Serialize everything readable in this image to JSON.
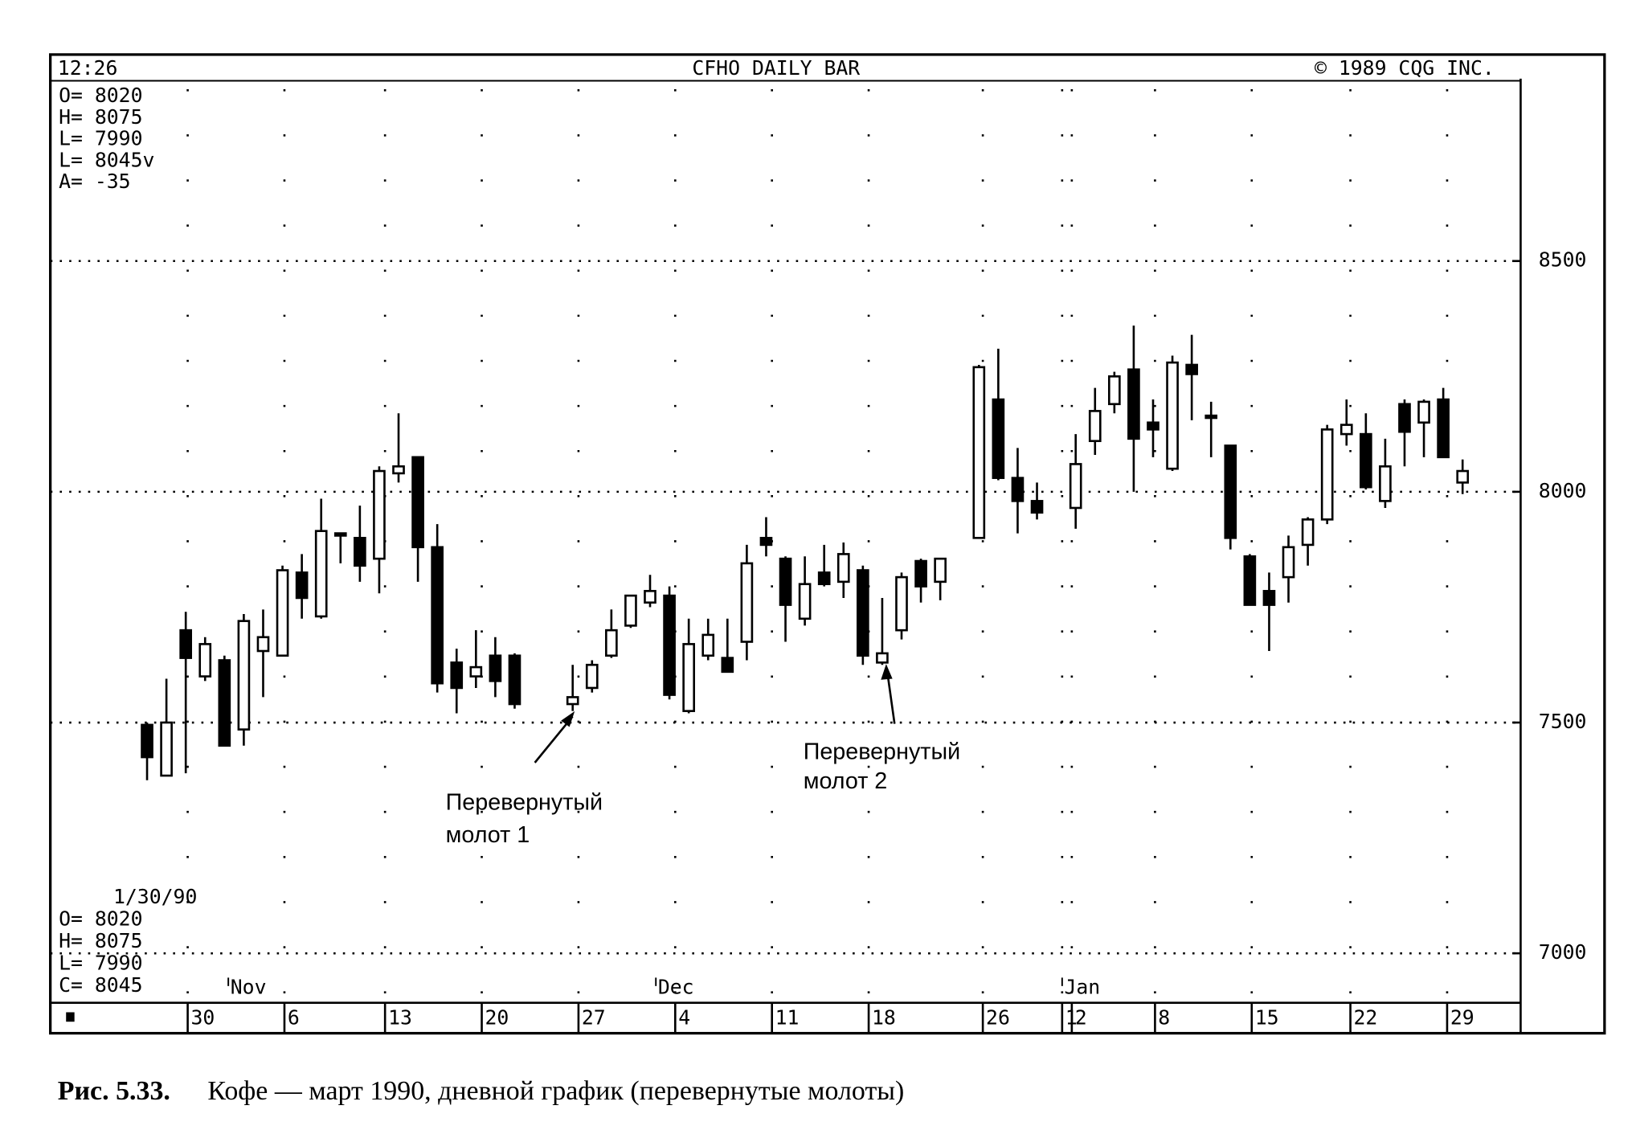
{
  "chart_data": {
    "type": "candlestick",
    "title": "CFHO DAILY BAR",
    "header_left": "12:26",
    "header_right": "© 1989 CQG INC.",
    "info_top": [
      "O= 8020",
      "H= 8075",
      "L= 7990",
      "L= 8045v",
      "A=  -35"
    ],
    "info_bottom": [
      "1/30/90",
      "O= 8020",
      "H= 8075",
      "L= 7990",
      "C= 8045"
    ],
    "x": [
      0,
      1,
      2,
      3,
      4,
      5,
      6,
      7,
      8,
      9,
      10,
      11,
      12,
      13,
      14,
      15,
      16,
      17,
      18,
      19,
      22,
      23,
      24,
      25,
      26,
      27,
      28,
      29,
      30,
      31,
      32,
      33,
      34,
      35,
      36,
      37,
      38,
      39,
      40,
      41,
      43,
      44,
      45,
      46,
      48,
      49,
      50,
      51,
      52,
      53,
      54,
      55,
      56,
      57,
      58,
      59,
      60,
      61,
      62,
      63,
      64,
      65,
      66,
      67,
      68
    ],
    "open": [
      7495,
      7385,
      7700,
      7600,
      7635,
      7485,
      7655,
      7645,
      7825,
      7730,
      7910,
      7900,
      7855,
      8040,
      8075,
      7880,
      7630,
      7600,
      7645,
      7645,
      7540,
      7575,
      7645,
      7710,
      7760,
      7775,
      7525,
      7645,
      7640,
      7675,
      7900,
      7855,
      7725,
      7825,
      7805,
      7830,
      7630,
      7700,
      7850,
      7805,
      7900,
      8200,
      8030,
      7980,
      7965,
      8110,
      8190,
      8265,
      8150,
      8050,
      8275,
      8165,
      8100,
      7860,
      7785,
      7815,
      7885,
      7940,
      8125,
      8125,
      7980,
      8190,
      8150,
      8200,
      8020
    ],
    "high": [
      7500,
      7595,
      7740,
      7685,
      7645,
      7735,
      7745,
      7840,
      7865,
      7985,
      7910,
      7970,
      8055,
      8170,
      8075,
      7930,
      7660,
      7700,
      7685,
      7650,
      7625,
      7635,
      7745,
      7775,
      7820,
      7795,
      7725,
      7725,
      7725,
      7885,
      7945,
      7860,
      7860,
      7885,
      7890,
      7840,
      7770,
      7825,
      7855,
      7855,
      8275,
      8310,
      8095,
      8020,
      8125,
      8225,
      8260,
      8360,
      8200,
      8295,
      8340,
      8195,
      8100,
      7865,
      7825,
      7905,
      7945,
      8145,
      8200,
      8170,
      8115,
      8200,
      8200,
      8225,
      8070
    ],
    "low": [
      7375,
      7385,
      7390,
      7590,
      7450,
      7450,
      7555,
      7645,
      7725,
      7725,
      7845,
      7805,
      7780,
      8020,
      7805,
      7565,
      7520,
      7575,
      7555,
      7530,
      7525,
      7565,
      7640,
      7705,
      7750,
      7550,
      7520,
      7635,
      7610,
      7635,
      7860,
      7675,
      7710,
      7795,
      7770,
      7625,
      7625,
      7680,
      7760,
      7765,
      7900,
      8025,
      7910,
      7940,
      7920,
      8080,
      8170,
      8000,
      8075,
      8045,
      8155,
      8075,
      7875,
      7755,
      7655,
      7760,
      7840,
      7930,
      8100,
      8005,
      7965,
      8055,
      8075,
      8075,
      7995
    ],
    "close": [
      7425,
      7500,
      7640,
      7670,
      7450,
      7720,
      7685,
      7830,
      7770,
      7915,
      7905,
      7840,
      8045,
      8055,
      7880,
      7585,
      7575,
      7620,
      7590,
      7540,
      7555,
      7625,
      7700,
      7775,
      7785,
      7560,
      7670,
      7690,
      7610,
      7845,
      7885,
      7755,
      7800,
      7800,
      7865,
      7645,
      7650,
      7815,
      7795,
      7855,
      8270,
      8030,
      7980,
      7955,
      8060,
      8175,
      8250,
      8115,
      8135,
      8280,
      8255,
      8160,
      7900,
      7755,
      7755,
      7880,
      7940,
      8135,
      8145,
      8010,
      8055,
      8130,
      8195,
      8075,
      8045
    ],
    "up_color": "#ffffff",
    "down_color": "#000000",
    "xlim": [
      -5,
      71
    ],
    "xticks": [
      {
        "value": 2.1,
        "label": "30"
      },
      {
        "value": 7.1,
        "label": "6"
      },
      {
        "value": 12.3,
        "label": "13"
      },
      {
        "value": 17.3,
        "label": "20"
      },
      {
        "value": 22.3,
        "label": "27"
      },
      {
        "value": 27.3,
        "label": "4"
      },
      {
        "value": 32.3,
        "label": "11"
      },
      {
        "value": 37.3,
        "label": "18"
      },
      {
        "value": 43.2,
        "label": "26"
      },
      {
        "value": 47.3,
        "label": "1"
      },
      {
        "value": 47.8,
        "label": "2"
      },
      {
        "value": 52.1,
        "label": "8"
      },
      {
        "value": 57.1,
        "label": "15"
      },
      {
        "value": 62.2,
        "label": "22"
      },
      {
        "value": 67.2,
        "label": "29"
      }
    ],
    "month_ticks": [
      {
        "value": 4.2,
        "label": "Nov"
      },
      {
        "value": 26.3,
        "label": "Dec"
      },
      {
        "value": 47.3,
        "label": "Jan"
      }
    ],
    "ylim": [
      6895,
      8895
    ],
    "yticks": [
      7000,
      7500,
      8000,
      8500
    ],
    "grid": true,
    "annotations": [
      {
        "lines": [
          "Перевернутый",
          "молот 1"
        ]
      },
      {
        "lines": [
          "Перевернутый",
          "молот 2"
        ]
      }
    ],
    "caption": {
      "figure": "Рис. 5.33.",
      "text": "Кофе — март 1990, дневной график (перевернутые молоты)"
    }
  }
}
